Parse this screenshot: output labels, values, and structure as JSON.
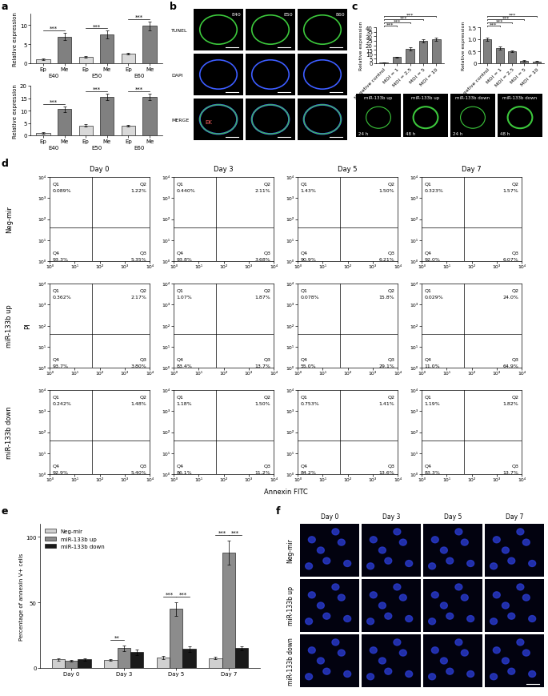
{
  "chart_data": [
    {
      "panel": "a",
      "type": "bar",
      "y_label": "Relative expression",
      "categories": [
        "Ep",
        "Me",
        "Ep",
        "Me",
        "Ep",
        "Me"
      ],
      "groups": [
        "E40",
        "E50",
        "E60"
      ],
      "values": [
        1.0,
        7.0,
        1.6,
        7.5,
        2.6,
        9.8
      ],
      "errors": [
        0.2,
        0.9,
        0.2,
        1.0,
        0.2,
        1.1
      ],
      "colors": [
        "#d9d9d9",
        "#808080",
        "#d9d9d9",
        "#808080",
        "#d9d9d9",
        "#808080"
      ],
      "ylim": [
        0,
        13
      ],
      "yticks": [
        0,
        5,
        10
      ],
      "annotations": [
        "***",
        "***",
        "***"
      ]
    },
    {
      "type": "bar",
      "y_label": "Relative expression",
      "categories": [
        "Ep",
        "Me",
        "Ep",
        "Me",
        "Ep",
        "Me"
      ],
      "groups": [
        "E40",
        "E50",
        "E60"
      ],
      "values": [
        1.0,
        10.5,
        4.0,
        15.5,
        4.0,
        15.6
      ],
      "errors": [
        0.2,
        1.2,
        0.4,
        1.2,
        0.3,
        1.3
      ],
      "colors": [
        "#d9d9d9",
        "#808080",
        "#d9d9d9",
        "#808080",
        "#d9d9d9",
        "#808080"
      ],
      "ylim": [
        0,
        20
      ],
      "yticks": [
        0,
        5,
        10,
        15,
        20
      ],
      "annotations": [
        "***",
        "***",
        "***"
      ]
    },
    {
      "panel": "b",
      "type": "image",
      "rows": [
        "TUNEL",
        "DAPI",
        "MERGE"
      ],
      "columns": [
        "E40",
        "E50",
        "E60"
      ],
      "annotations": [
        "EK"
      ]
    },
    {
      "panel": "c",
      "type": "bar",
      "y_label": "Relative expression",
      "categories": [
        "Negative control",
        "MOI = 1",
        "MOI = 2.5",
        "MOI = 5",
        "MOI = 10"
      ],
      "values": [
        1.0,
        6.8,
        16.0,
        24.5,
        27.0
      ],
      "errors": [
        0.3,
        0.6,
        1.5,
        1.8,
        1.8
      ],
      "color": "#808080",
      "ylim": [
        0,
        40
      ],
      "yticks": [
        0,
        5,
        10,
        15,
        20,
        25,
        30,
        35,
        40
      ],
      "annotations": [
        "***",
        "***",
        "***",
        "***"
      ]
    },
    {
      "type": "bar",
      "y_label": "Relative expression",
      "categories": [
        "Negative control",
        "MOI = 1",
        "MOI = 2.5",
        "MOI = 5",
        "MOI = 10"
      ],
      "values": [
        1.0,
        0.63,
        0.5,
        0.1,
        0.08
      ],
      "errors": [
        0.08,
        0.06,
        0.04,
        0.02,
        0.02
      ],
      "color": "#808080",
      "ylim": [
        0,
        1.5
      ],
      "yticks": [
        0,
        0.5,
        {
          "value": 1,
          "label": "1.0"
        },
        1.5
      ],
      "annotations": [
        "***",
        "***",
        "***",
        "***"
      ]
    },
    {
      "type": "image",
      "labels": [
        "miR-133b up",
        "miR-133b up",
        "miR-133b down",
        "miR-133b down"
      ],
      "times": [
        "24 h",
        "48 h",
        "24 h",
        "48 h"
      ]
    },
    {
      "panel": "d",
      "type": "scatter",
      "log": true,
      "x_label": "Annexin FITC",
      "y_label": "PI",
      "rows": [
        "Neg-mir",
        "miR-133b up",
        "miR-133b down"
      ],
      "columns": [
        "Day 0",
        "Day 3",
        "Day 5",
        "Day 7"
      ],
      "quadrant_names": [
        "Q1",
        "Q2",
        "Q3",
        "Q4"
      ],
      "gate": [
        50,
        40
      ],
      "xlim": [
        1,
        10000
      ],
      "ylim": [
        1,
        10000
      ],
      "xticks": [
        {
          "value": 1,
          "label": "10⁰"
        },
        {
          "value": 10,
          "label": "10¹"
        },
        {
          "value": 100,
          "label": "10²"
        },
        {
          "value": 1000,
          "label": "10³"
        },
        {
          "value": 10000,
          "label": "10⁴"
        }
      ],
      "yticks": [
        {
          "value": 1,
          "label": "10⁰"
        },
        {
          "value": 10,
          "label": "10¹"
        },
        {
          "value": 100,
          "label": "10²"
        },
        {
          "value": 1000,
          "label": "10³"
        },
        {
          "value": 10000,
          "label": "10⁴"
        }
      ],
      "labels": [
        [
          [
            "0.089%",
            "1.22%",
            "5.35%",
            "93.3%"
          ],
          [
            "0.440%",
            "2.11%",
            "3.68%",
            "93.8%"
          ],
          [
            "1.43%",
            "1.50%",
            "6.21%",
            "90.9%"
          ],
          [
            "0.323%",
            "1.57%",
            "6.07%",
            "92.0%"
          ]
        ],
        [
          [
            "0.362%",
            "2.17%",
            "3.80%",
            "93.7%"
          ],
          [
            "1.07%",
            "1.87%",
            "13.7%",
            "83.4%"
          ],
          [
            "0.078%",
            "15.8%",
            "29.1%",
            "55.0%"
          ],
          [
            "0.029%",
            "24.0%",
            "64.9%",
            "11.0%"
          ]
        ],
        [
          [
            "0.242%",
            "1.48%",
            "5.40%",
            "92.9%"
          ],
          [
            "1.18%",
            "1.50%",
            "11.2%",
            "86.1%"
          ],
          [
            "0.753%",
            "1.41%",
            "13.6%",
            "84.2%"
          ],
          [
            "1.19%",
            "1.82%",
            "13.7%",
            "83.3%"
          ]
        ]
      ]
    },
    {
      "panel": "e",
      "type": "bar",
      "y_label": "Percentage of annexin V+ cells",
      "categories": [
        "Day 0",
        "Day 3",
        "Day 5",
        "Day 7"
      ],
      "series": [
        {
          "name": "Neg-mir",
          "color": "#d0d0d0",
          "values": [
            6.5,
            6.0,
            8.0,
            7.5
          ],
          "errors": [
            0.8,
            0.6,
            1.0,
            0.8
          ]
        },
        {
          "name": "miR-133b up",
          "color": "#8c8c8c",
          "values": [
            5.5,
            15.0,
            45.0,
            88.0
          ],
          "errors": [
            0.8,
            2.0,
            5.0,
            9.0
          ]
        },
        {
          "name": "miR-133b down",
          "color": "#1a1a1a",
          "values": [
            6.5,
            12.0,
            14.5,
            15.0
          ],
          "errors": [
            0.8,
            2.0,
            2.0,
            1.5
          ]
        }
      ],
      "ylim": [
        0,
        110
      ],
      "yticks": [
        0,
        50,
        100
      ],
      "legend": "upper left",
      "annotations": [
        {
          "category": "Day 3",
          "from": "Neg-mir",
          "to": "miR-133b up",
          "label": "**"
        },
        {
          "category": "Day 5",
          "from": "Neg-mir",
          "to": "miR-133b up",
          "label": "***"
        },
        {
          "category": "Day 5",
          "from": "miR-133b up",
          "to": "miR-133b down",
          "label": "***"
        },
        {
          "category": "Day 7",
          "from": "Neg-mir",
          "to": "miR-133b up",
          "label": "***"
        },
        {
          "category": "Day 7",
          "from": "miR-133b up",
          "to": "miR-133b down",
          "label": "***"
        }
      ]
    },
    {
      "panel": "f",
      "type": "image",
      "rows": [
        "Neg-mir",
        "miR-133b up",
        "miR-133b down"
      ],
      "columns": [
        "Day 0",
        "Day 3",
        "Day 5",
        "Day 7"
      ]
    }
  ]
}
